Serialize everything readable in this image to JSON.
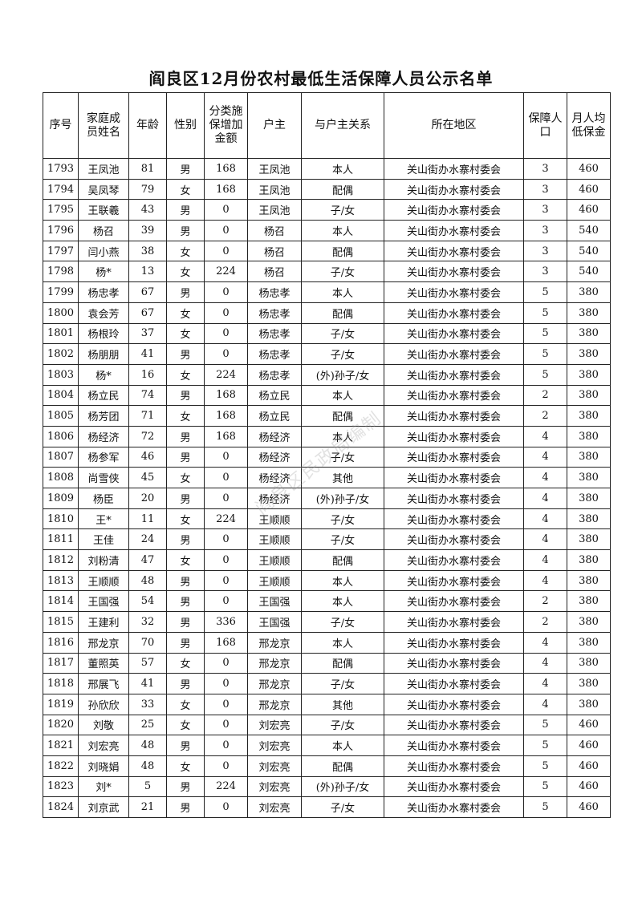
{
  "title": "阎良区12月份农村最低生活保障人员公示名单",
  "watermark": "阎良区民政局编制",
  "headers": [
    "序号",
    "家庭成员姓名",
    "年龄",
    "性别",
    "分类施保增加金额",
    "户主",
    "与户主关系",
    "所在地区",
    "保障人口",
    "月人均低保金"
  ],
  "rows": [
    [
      "1793",
      "王凤池",
      "81",
      "男",
      "168",
      "王凤池",
      "本人",
      "关山街办水寨村委会",
      "3",
      "460"
    ],
    [
      "1794",
      "吴凤琴",
      "79",
      "女",
      "168",
      "王凤池",
      "配偶",
      "关山街办水寨村委会",
      "3",
      "460"
    ],
    [
      "1795",
      "王联羲",
      "43",
      "男",
      "0",
      "王凤池",
      "子/女",
      "关山街办水寨村委会",
      "3",
      "460"
    ],
    [
      "1796",
      "杨召",
      "39",
      "男",
      "0",
      "杨召",
      "本人",
      "关山街办水寨村委会",
      "3",
      "540"
    ],
    [
      "1797",
      "闫小燕",
      "38",
      "女",
      "0",
      "杨召",
      "配偶",
      "关山街办水寨村委会",
      "3",
      "540"
    ],
    [
      "1798",
      "杨*",
      "13",
      "女",
      "224",
      "杨召",
      "子/女",
      "关山街办水寨村委会",
      "3",
      "540"
    ],
    [
      "1799",
      "杨忠孝",
      "67",
      "男",
      "0",
      "杨忠孝",
      "本人",
      "关山街办水寨村委会",
      "5",
      "380"
    ],
    [
      "1800",
      "袁会芳",
      "67",
      "女",
      "0",
      "杨忠孝",
      "配偶",
      "关山街办水寨村委会",
      "5",
      "380"
    ],
    [
      "1801",
      "杨根玲",
      "37",
      "女",
      "0",
      "杨忠孝",
      "子/女",
      "关山街办水寨村委会",
      "5",
      "380"
    ],
    [
      "1802",
      "杨朋朋",
      "41",
      "男",
      "0",
      "杨忠孝",
      "子/女",
      "关山街办水寨村委会",
      "5",
      "380"
    ],
    [
      "1803",
      "杨*",
      "16",
      "女",
      "224",
      "杨忠孝",
      "(外)孙子/女",
      "关山街办水寨村委会",
      "5",
      "380"
    ],
    [
      "1804",
      "杨立民",
      "74",
      "男",
      "168",
      "杨立民",
      "本人",
      "关山街办水寨村委会",
      "2",
      "380"
    ],
    [
      "1805",
      "杨芳团",
      "71",
      "女",
      "168",
      "杨立民",
      "配偶",
      "关山街办水寨村委会",
      "2",
      "380"
    ],
    [
      "1806",
      "杨经济",
      "72",
      "男",
      "168",
      "杨经济",
      "本人",
      "关山街办水寨村委会",
      "4",
      "380"
    ],
    [
      "1807",
      "杨参军",
      "46",
      "男",
      "0",
      "杨经济",
      "子/女",
      "关山街办水寨村委会",
      "4",
      "380"
    ],
    [
      "1808",
      "尚雪侠",
      "45",
      "女",
      "0",
      "杨经济",
      "其他",
      "关山街办水寨村委会",
      "4",
      "380"
    ],
    [
      "1809",
      "杨臣",
      "20",
      "男",
      "0",
      "杨经济",
      "(外)孙子/女",
      "关山街办水寨村委会",
      "4",
      "380"
    ],
    [
      "1810",
      "王*",
      "11",
      "女",
      "224",
      "王顺顺",
      "子/女",
      "关山街办水寨村委会",
      "4",
      "380"
    ],
    [
      "1811",
      "王佳",
      "24",
      "男",
      "0",
      "王顺顺",
      "子/女",
      "关山街办水寨村委会",
      "4",
      "380"
    ],
    [
      "1812",
      "刘粉清",
      "47",
      "女",
      "0",
      "王顺顺",
      "配偶",
      "关山街办水寨村委会",
      "4",
      "380"
    ],
    [
      "1813",
      "王顺顺",
      "48",
      "男",
      "0",
      "王顺顺",
      "本人",
      "关山街办水寨村委会",
      "4",
      "380"
    ],
    [
      "1814",
      "王国强",
      "54",
      "男",
      "0",
      "王国强",
      "本人",
      "关山街办水寨村委会",
      "2",
      "380"
    ],
    [
      "1815",
      "王建利",
      "32",
      "男",
      "336",
      "王国强",
      "子/女",
      "关山街办水寨村委会",
      "2",
      "380"
    ],
    [
      "1816",
      "邢龙京",
      "70",
      "男",
      "168",
      "邢龙京",
      "本人",
      "关山街办水寨村委会",
      "4",
      "380"
    ],
    [
      "1817",
      "董照英",
      "57",
      "女",
      "0",
      "邢龙京",
      "配偶",
      "关山街办水寨村委会",
      "4",
      "380"
    ],
    [
      "1818",
      "邢展飞",
      "41",
      "男",
      "0",
      "邢龙京",
      "子/女",
      "关山街办水寨村委会",
      "4",
      "380"
    ],
    [
      "1819",
      "孙欣欣",
      "33",
      "女",
      "0",
      "邢龙京",
      "其他",
      "关山街办水寨村委会",
      "4",
      "380"
    ],
    [
      "1820",
      "刘敬",
      "25",
      "女",
      "0",
      "刘宏亮",
      "子/女",
      "关山街办水寨村委会",
      "5",
      "460"
    ],
    [
      "1821",
      "刘宏亮",
      "48",
      "男",
      "0",
      "刘宏亮",
      "本人",
      "关山街办水寨村委会",
      "5",
      "460"
    ],
    [
      "1822",
      "刘晓娟",
      "48",
      "女",
      "0",
      "刘宏亮",
      "配偶",
      "关山街办水寨村委会",
      "5",
      "460"
    ],
    [
      "1823",
      "刘*",
      "5",
      "男",
      "224",
      "刘宏亮",
      "(外)孙子/女",
      "关山街办水寨村委会",
      "5",
      "460"
    ],
    [
      "1824",
      "刘京武",
      "21",
      "男",
      "0",
      "刘宏亮",
      "子/女",
      "关山街办水寨村委会",
      "5",
      "460"
    ]
  ]
}
